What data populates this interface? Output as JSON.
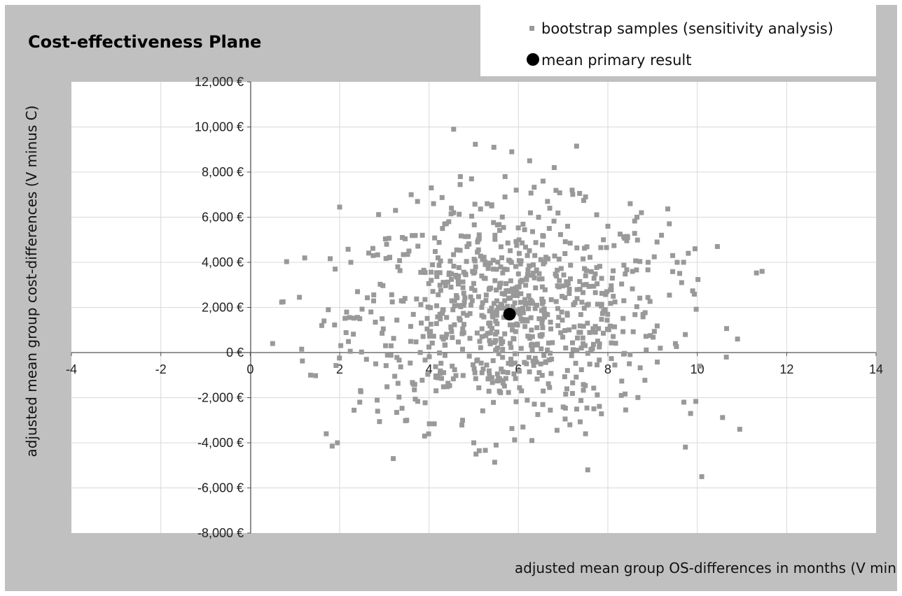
{
  "chart_data": {
    "type": "scatter",
    "title": "Cost-effectiveness Plane",
    "xlabel": "adjusted mean group OS-differences in months (V minus C)",
    "ylabel": "adjusted mean group cost-differences (V minus C)",
    "xlim": [
      -4,
      14
    ],
    "ylim": [
      -8000,
      12000
    ],
    "x_ticks": [
      "-4",
      "-2",
      "0",
      "2",
      "4",
      "6",
      "8",
      "10",
      "12",
      "14"
    ],
    "y_ticks": [
      "12,000 €",
      "10,000 €",
      "8,000 €",
      "6,000 €",
      "4,000 €",
      "2,000 €",
      "0 €",
      "-2,000 €",
      "-4,000 €",
      "-6,000 €",
      "-8,000 €"
    ],
    "grid": "vertical-and-horizontal",
    "legend_position": "top-right",
    "colors": {
      "background": "#c0c0c0",
      "plot_area": "#ffffff",
      "bootstrap": "#999999",
      "mean": "#000000"
    },
    "series": [
      {
        "name": "bootstrap samples (sensitivity analysis)",
        "marker": "square",
        "points": [
          [
            0.5,
            400
          ],
          [
            1.1,
            2450
          ],
          [
            1.15,
            150
          ],
          [
            1.35,
            -1000
          ],
          [
            1.6,
            1200
          ],
          [
            1.65,
            1400
          ],
          [
            1.7,
            -3600
          ],
          [
            1.9,
            3700
          ],
          [
            1.95,
            -4000
          ],
          [
            2.0,
            6450
          ],
          [
            2.25,
            4000
          ],
          [
            2.4,
            2700
          ],
          [
            2.45,
            1500
          ],
          [
            2.45,
            -2200
          ],
          [
            2.6,
            -300
          ],
          [
            2.7,
            1800
          ],
          [
            2.75,
            4300
          ],
          [
            2.85,
            -2600
          ],
          [
            2.95,
            1500
          ],
          [
            3.05,
            4800
          ],
          [
            3.15,
            300
          ],
          [
            3.2,
            -4700
          ],
          [
            3.25,
            6300
          ],
          [
            3.3,
            3800
          ],
          [
            3.5,
            -3000
          ],
          [
            3.55,
            4500
          ],
          [
            3.6,
            7000
          ],
          [
            3.65,
            -1400
          ],
          [
            3.85,
            5200
          ],
          [
            3.9,
            -3700
          ],
          [
            4.05,
            7300
          ],
          [
            4.1,
            6600
          ],
          [
            4.2,
            4200
          ],
          [
            4.3,
            5500
          ],
          [
            4.35,
            5700
          ],
          [
            4.55,
            9900
          ],
          [
            4.5,
            6400
          ],
          [
            4.55,
            6200
          ],
          [
            4.7,
            7800
          ],
          [
            4.75,
            -3000
          ],
          [
            4.95,
            7700
          ],
          [
            5.0,
            -4000
          ],
          [
            5.05,
            -4500
          ],
          [
            5.1,
            5000
          ],
          [
            5.3,
            6600
          ],
          [
            5.4,
            6500
          ],
          [
            5.45,
            9100
          ],
          [
            5.5,
            -4100
          ],
          [
            5.7,
            7800
          ],
          [
            5.85,
            8900
          ],
          [
            5.95,
            7200
          ],
          [
            6.1,
            -3300
          ],
          [
            6.25,
            8500
          ],
          [
            6.3,
            -3900
          ],
          [
            6.45,
            6000
          ],
          [
            6.55,
            7600
          ],
          [
            6.65,
            6700
          ],
          [
            6.7,
            6400
          ],
          [
            6.8,
            8200
          ],
          [
            7.1,
            5600
          ],
          [
            7.15,
            -3200
          ],
          [
            7.3,
            9150
          ],
          [
            7.2,
            7200
          ],
          [
            7.5,
            6900
          ],
          [
            7.55,
            -5200
          ],
          [
            7.5,
            -3600
          ],
          [
            7.9,
            5000
          ],
          [
            8.0,
            5600
          ],
          [
            8.1,
            3300
          ],
          [
            8.3,
            -1900
          ],
          [
            8.5,
            6600
          ],
          [
            8.65,
            6000
          ],
          [
            8.75,
            6200
          ],
          [
            8.9,
            4000
          ],
          [
            9.1,
            4900
          ],
          [
            9.2,
            5200
          ],
          [
            9.45,
            4300
          ],
          [
            9.55,
            4000
          ],
          [
            9.65,
            3100
          ],
          [
            9.7,
            -2200
          ],
          [
            9.8,
            4400
          ],
          [
            9.85,
            -2700
          ],
          [
            9.95,
            4600
          ],
          [
            10.05,
            -600
          ],
          [
            10.1,
            -5500
          ],
          [
            10.45,
            4700
          ],
          [
            10.65,
            -200
          ],
          [
            10.9,
            600
          ],
          [
            10.95,
            -3400
          ],
          [
            11.45,
            3600
          ]
        ]
      },
      {
        "name": "mean primary result",
        "marker": "circle",
        "points": [
          [
            5.8,
            1700
          ]
        ]
      }
    ]
  }
}
